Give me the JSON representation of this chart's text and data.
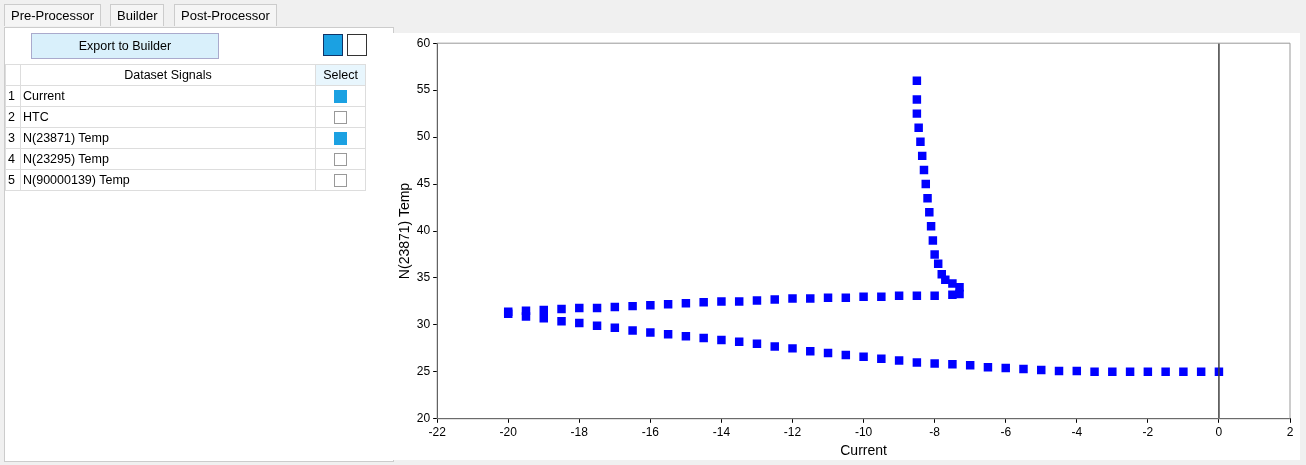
{
  "chart_data": {
    "type": "scatter",
    "xlabel": "Current",
    "ylabel": "N(23871) Temp",
    "xlim": [
      -22,
      2
    ],
    "xticks": [
      -22,
      -20,
      -18,
      -16,
      -14,
      -12,
      -10,
      -8,
      -6,
      -4,
      -2,
      0,
      2
    ],
    "ylim": [
      20,
      60
    ],
    "yticks": [
      20,
      25,
      30,
      35,
      40,
      45,
      50,
      55,
      60
    ],
    "grid": false,
    "legend": false,
    "marker": "square",
    "ref_lines": [
      {
        "axis": "x",
        "value": 0,
        "color": "#404040"
      }
    ],
    "annotations": [
      "Pre-Processor",
      "Builder",
      "Post-Processor",
      "Export to Builder",
      "Dataset Signals",
      "Select",
      "1",
      "Current",
      "2",
      "HTC",
      "3",
      "N(23871) Temp",
      "4",
      "N(23295) Temp",
      "5",
      "N(90000139) Temp"
    ],
    "series": [
      {
        "color": "#0000ff",
        "x": [
          0,
          -0.5,
          -1,
          -1.5,
          -2,
          -2.5,
          -3,
          -3.5,
          -4,
          -4.5,
          -5,
          -5.5,
          -6,
          -6.5,
          -7,
          -7.5,
          -8,
          -8.5,
          -9,
          -9.5,
          -10,
          -10.5,
          -11,
          -11.5,
          -12,
          -12.5,
          -13,
          -13.5,
          -14,
          -14.5,
          -15,
          -15.5,
          -16,
          -16.5,
          -17,
          -17.5,
          -18,
          -18.5,
          -19,
          -19.5,
          -20,
          -20,
          -19.5,
          -19,
          -18.5,
          -18,
          -17.5,
          -17,
          -16.5,
          -16,
          -15.5,
          -15,
          -14.5,
          -14,
          -13.5,
          -13,
          -12.5,
          -12,
          -11.5,
          -11,
          -10.5,
          -10,
          -9.5,
          -9,
          -8.5,
          -8,
          -7.5,
          -7.3,
          -7.3,
          -7.5,
          -7.7,
          -7.8,
          -7.9,
          -8,
          -8.05,
          -8.1,
          -8.15,
          -8.2,
          -8.25,
          -8.3,
          -8.35,
          -8.4,
          -8.45,
          -8.5,
          -8.5,
          -8.5
        ],
        "values": [
          25,
          25,
          25,
          25,
          25,
          25,
          25,
          25,
          25.1,
          25.1,
          25.2,
          25.3,
          25.4,
          25.5,
          25.7,
          25.8,
          25.9,
          26,
          26.2,
          26.4,
          26.6,
          26.8,
          27,
          27.2,
          27.5,
          27.7,
          28,
          28.2,
          28.4,
          28.6,
          28.8,
          29,
          29.2,
          29.4,
          29.7,
          29.9,
          30.2,
          30.4,
          30.7,
          30.9,
          31.2,
          31.4,
          31.5,
          31.6,
          31.7,
          31.8,
          31.8,
          31.9,
          32,
          32.1,
          32.2,
          32.3,
          32.4,
          32.5,
          32.5,
          32.6,
          32.7,
          32.8,
          32.8,
          32.9,
          32.9,
          33,
          33,
          33.1,
          33.1,
          33.1,
          33.2,
          33.3,
          34,
          34.4,
          34.8,
          35.4,
          36.5,
          37.5,
          39,
          40.5,
          42,
          43.5,
          45,
          46.5,
          48,
          49.5,
          51,
          52.5,
          54,
          56
        ]
      }
    ]
  }
}
